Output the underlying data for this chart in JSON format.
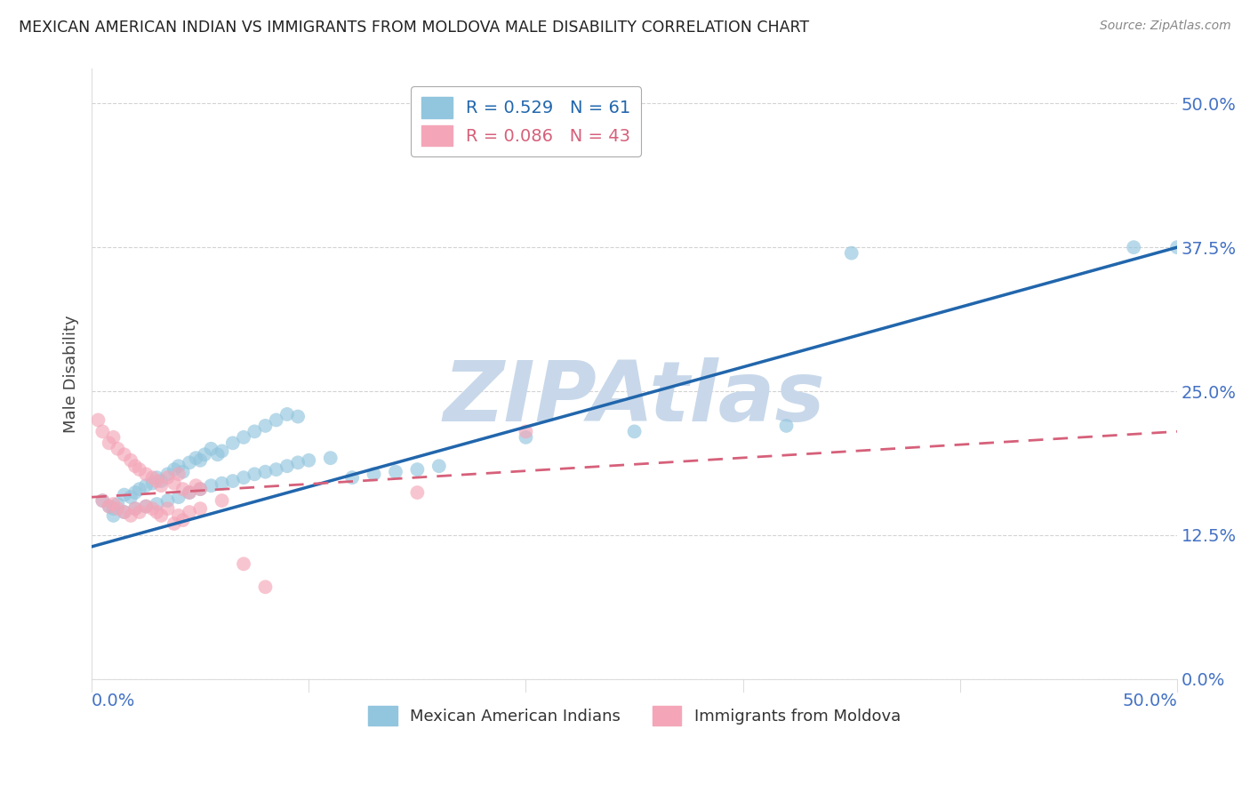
{
  "title": "MEXICAN AMERICAN INDIAN VS IMMIGRANTS FROM MOLDOVA MALE DISABILITY CORRELATION CHART",
  "source": "Source: ZipAtlas.com",
  "ylabel": "Male Disability",
  "ytick_labels": [
    "0.0%",
    "12.5%",
    "25.0%",
    "37.5%",
    "50.0%"
  ],
  "ytick_values": [
    0.0,
    0.125,
    0.25,
    0.375,
    0.5
  ],
  "xtick_labels": [
    "0.0%",
    "50.0%"
  ],
  "xtick_values": [
    0.0,
    0.5
  ],
  "xlim": [
    0.0,
    0.5
  ],
  "ylim": [
    0.0,
    0.53
  ],
  "legend1_label": "R = 0.529   N = 61",
  "legend2_label": "R = 0.086   N = 43",
  "blue_color": "#92c5de",
  "pink_color": "#f4a6b8",
  "blue_line_color": "#2166ac",
  "pink_line_color": "#d6607a",
  "watermark": "ZIPAtlas",
  "watermark_color": "#c8d8ea",
  "background_color": "#ffffff",
  "grid_color": "#c8c8c8",
  "title_color": "#222222",
  "axis_label_color": "#4472c4",
  "source_color": "#888888",
  "blue_scatter_x": [
    0.005,
    0.008,
    0.01,
    0.012,
    0.015,
    0.018,
    0.02,
    0.022,
    0.025,
    0.028,
    0.03,
    0.032,
    0.035,
    0.038,
    0.04,
    0.042,
    0.045,
    0.048,
    0.05,
    0.052,
    0.055,
    0.058,
    0.06,
    0.065,
    0.07,
    0.075,
    0.08,
    0.085,
    0.09,
    0.095,
    0.01,
    0.015,
    0.02,
    0.025,
    0.03,
    0.035,
    0.04,
    0.045,
    0.05,
    0.055,
    0.06,
    0.065,
    0.07,
    0.075,
    0.08,
    0.085,
    0.09,
    0.095,
    0.1,
    0.11,
    0.12,
    0.13,
    0.14,
    0.15,
    0.16,
    0.2,
    0.25,
    0.32,
    0.35,
    0.48,
    0.5
  ],
  "blue_scatter_y": [
    0.155,
    0.15,
    0.148,
    0.152,
    0.16,
    0.158,
    0.162,
    0.165,
    0.168,
    0.17,
    0.175,
    0.172,
    0.178,
    0.182,
    0.185,
    0.18,
    0.188,
    0.192,
    0.19,
    0.195,
    0.2,
    0.195,
    0.198,
    0.205,
    0.21,
    0.215,
    0.22,
    0.225,
    0.23,
    0.228,
    0.142,
    0.145,
    0.148,
    0.15,
    0.152,
    0.155,
    0.158,
    0.162,
    0.165,
    0.168,
    0.17,
    0.172,
    0.175,
    0.178,
    0.18,
    0.182,
    0.185,
    0.188,
    0.19,
    0.192,
    0.175,
    0.178,
    0.18,
    0.182,
    0.185,
    0.21,
    0.215,
    0.22,
    0.37,
    0.375,
    0.375
  ],
  "pink_scatter_x": [
    0.003,
    0.005,
    0.008,
    0.01,
    0.012,
    0.015,
    0.018,
    0.02,
    0.022,
    0.025,
    0.028,
    0.03,
    0.032,
    0.035,
    0.038,
    0.04,
    0.042,
    0.045,
    0.048,
    0.05,
    0.005,
    0.008,
    0.01,
    0.012,
    0.015,
    0.018,
    0.02,
    0.022,
    0.025,
    0.028,
    0.03,
    0.032,
    0.035,
    0.038,
    0.04,
    0.042,
    0.045,
    0.05,
    0.06,
    0.07,
    0.08,
    0.15,
    0.2
  ],
  "pink_scatter_y": [
    0.225,
    0.215,
    0.205,
    0.21,
    0.2,
    0.195,
    0.19,
    0.185,
    0.182,
    0.178,
    0.175,
    0.172,
    0.168,
    0.175,
    0.17,
    0.178,
    0.165,
    0.162,
    0.168,
    0.165,
    0.155,
    0.15,
    0.152,
    0.148,
    0.145,
    0.142,
    0.148,
    0.145,
    0.15,
    0.148,
    0.145,
    0.142,
    0.148,
    0.135,
    0.142,
    0.138,
    0.145,
    0.148,
    0.155,
    0.1,
    0.08,
    0.162,
    0.215
  ],
  "blue_line_x": [
    0.0,
    0.5
  ],
  "blue_line_y": [
    0.115,
    0.375
  ],
  "pink_line_x": [
    0.0,
    0.5
  ],
  "pink_line_y": [
    0.158,
    0.215
  ]
}
